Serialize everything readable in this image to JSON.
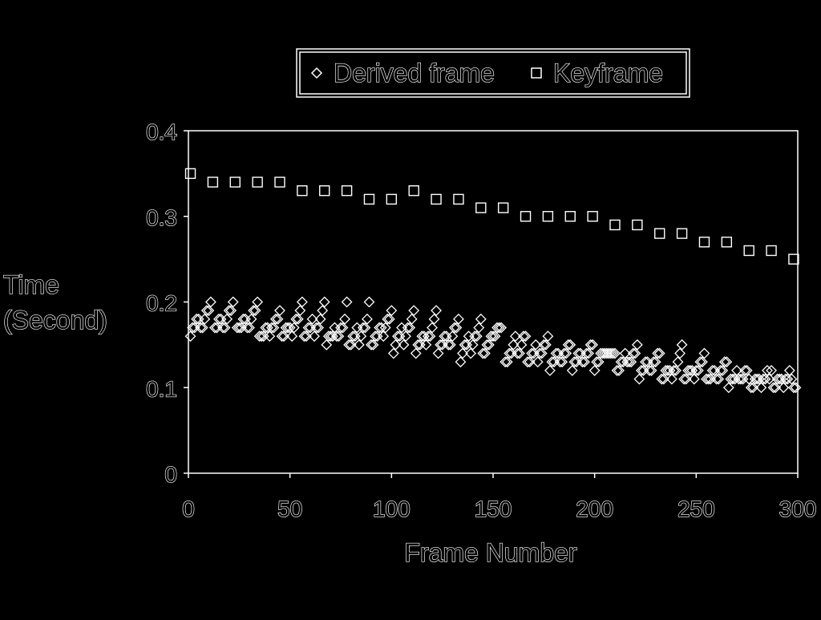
{
  "chart_data": {
    "type": "scatter",
    "title": "",
    "xlabel": "Frame Number",
    "ylabel": [
      "Time",
      "(Second)"
    ],
    "xlim": [
      0,
      300
    ],
    "ylim": [
      0,
      0.4
    ],
    "x_ticks": [
      0,
      50,
      100,
      150,
      200,
      250,
      300
    ],
    "y_ticks": [
      0,
      0.1,
      0.2,
      0.3,
      0.4
    ],
    "x_tick_labels": [
      "0",
      "50",
      "100",
      "150",
      "200",
      "250",
      "300"
    ],
    "y_tick_labels": [
      "0",
      "0.1",
      "0.2",
      "0.3",
      "0.4"
    ],
    "grid": false,
    "legend_position": "top",
    "series": [
      {
        "name": "Derived frame",
        "marker": "diamond",
        "points": [
          [
            1,
            0.16
          ],
          [
            2,
            0.17
          ],
          [
            3,
            0.17
          ],
          [
            4,
            0.18
          ],
          [
            5,
            0.18
          ],
          [
            6,
            0.17
          ],
          [
            7,
            0.17
          ],
          [
            8,
            0.18
          ],
          [
            9,
            0.19
          ],
          [
            10,
            0.19
          ],
          [
            11,
            0.2
          ],
          [
            13,
            0.17
          ],
          [
            14,
            0.17
          ],
          [
            15,
            0.18
          ],
          [
            16,
            0.18
          ],
          [
            17,
            0.17
          ],
          [
            18,
            0.17
          ],
          [
            19,
            0.18
          ],
          [
            20,
            0.19
          ],
          [
            21,
            0.19
          ],
          [
            22,
            0.2
          ],
          [
            24,
            0.17
          ],
          [
            25,
            0.17
          ],
          [
            26,
            0.17
          ],
          [
            27,
            0.18
          ],
          [
            28,
            0.18
          ],
          [
            29,
            0.17
          ],
          [
            30,
            0.17
          ],
          [
            31,
            0.18
          ],
          [
            32,
            0.19
          ],
          [
            33,
            0.19
          ],
          [
            34,
            0.2
          ],
          [
            35,
            0.16
          ],
          [
            36,
            0.16
          ],
          [
            37,
            0.16
          ],
          [
            38,
            0.17
          ],
          [
            39,
            0.17
          ],
          [
            40,
            0.16
          ],
          [
            41,
            0.17
          ],
          [
            42,
            0.17
          ],
          [
            43,
            0.18
          ],
          [
            44,
            0.18
          ],
          [
            45,
            0.19
          ],
          [
            46,
            0.16
          ],
          [
            47,
            0.16
          ],
          [
            48,
            0.17
          ],
          [
            49,
            0.17
          ],
          [
            50,
            0.17
          ],
          [
            51,
            0.16
          ],
          [
            52,
            0.17
          ],
          [
            53,
            0.18
          ],
          [
            54,
            0.18
          ],
          [
            55,
            0.19
          ],
          [
            56,
            0.2
          ],
          [
            57,
            0.16
          ],
          [
            58,
            0.16
          ],
          [
            59,
            0.17
          ],
          [
            60,
            0.17
          ],
          [
            61,
            0.18
          ],
          [
            62,
            0.16
          ],
          [
            63,
            0.17
          ],
          [
            64,
            0.17
          ],
          [
            65,
            0.18
          ],
          [
            66,
            0.19
          ],
          [
            67,
            0.2
          ],
          [
            68,
            0.15
          ],
          [
            69,
            0.16
          ],
          [
            70,
            0.16
          ],
          [
            71,
            0.16
          ],
          [
            72,
            0.17
          ],
          [
            73,
            0.16
          ],
          [
            74,
            0.16
          ],
          [
            75,
            0.17
          ],
          [
            76,
            0.17
          ],
          [
            77,
            0.18
          ],
          [
            78,
            0.2
          ],
          [
            79,
            0.15
          ],
          [
            80,
            0.15
          ],
          [
            81,
            0.16
          ],
          [
            82,
            0.16
          ],
          [
            83,
            0.17
          ],
          [
            84,
            0.15
          ],
          [
            85,
            0.16
          ],
          [
            86,
            0.17
          ],
          [
            87,
            0.17
          ],
          [
            88,
            0.18
          ],
          [
            89,
            0.2
          ],
          [
            90,
            0.15
          ],
          [
            91,
            0.15
          ],
          [
            92,
            0.16
          ],
          [
            93,
            0.16
          ],
          [
            94,
            0.17
          ],
          [
            95,
            0.17
          ],
          [
            96,
            0.16
          ],
          [
            97,
            0.17
          ],
          [
            98,
            0.18
          ],
          [
            99,
            0.18
          ],
          [
            100,
            0.19
          ],
          [
            101,
            0.14
          ],
          [
            102,
            0.15
          ],
          [
            103,
            0.16
          ],
          [
            104,
            0.16
          ],
          [
            105,
            0.17
          ],
          [
            106,
            0.15
          ],
          [
            107,
            0.16
          ],
          [
            108,
            0.17
          ],
          [
            109,
            0.17
          ],
          [
            110,
            0.18
          ],
          [
            111,
            0.19
          ],
          [
            112,
            0.14
          ],
          [
            113,
            0.15
          ],
          [
            114,
            0.15
          ],
          [
            115,
            0.16
          ],
          [
            116,
            0.16
          ],
          [
            117,
            0.15
          ],
          [
            118,
            0.16
          ],
          [
            119,
            0.16
          ],
          [
            120,
            0.17
          ],
          [
            121,
            0.18
          ],
          [
            122,
            0.19
          ],
          [
            123,
            0.14
          ],
          [
            124,
            0.15
          ],
          [
            125,
            0.15
          ],
          [
            126,
            0.16
          ],
          [
            127,
            0.16
          ],
          [
            128,
            0.15
          ],
          [
            129,
            0.15
          ],
          [
            130,
            0.16
          ],
          [
            131,
            0.17
          ],
          [
            132,
            0.17
          ],
          [
            133,
            0.18
          ],
          [
            134,
            0.13
          ],
          [
            135,
            0.14
          ],
          [
            136,
            0.15
          ],
          [
            137,
            0.15
          ],
          [
            138,
            0.16
          ],
          [
            139,
            0.14
          ],
          [
            140,
            0.15
          ],
          [
            141,
            0.16
          ],
          [
            142,
            0.16
          ],
          [
            143,
            0.17
          ],
          [
            144,
            0.18
          ],
          [
            145,
            0.14
          ],
          [
            146,
            0.14
          ],
          [
            147,
            0.15
          ],
          [
            148,
            0.15
          ],
          [
            149,
            0.16
          ],
          [
            150,
            0.16
          ],
          [
            151,
            0.16
          ],
          [
            152,
            0.17
          ],
          [
            153,
            0.17
          ],
          [
            154,
            0.17
          ],
          [
            156,
            0.13
          ],
          [
            157,
            0.13
          ],
          [
            158,
            0.14
          ],
          [
            159,
            0.14
          ],
          [
            160,
            0.15
          ],
          [
            161,
            0.16
          ],
          [
            162,
            0.14
          ],
          [
            163,
            0.14
          ],
          [
            164,
            0.15
          ],
          [
            165,
            0.16
          ],
          [
            166,
            0.16
          ],
          [
            167,
            0.13
          ],
          [
            168,
            0.13
          ],
          [
            169,
            0.14
          ],
          [
            170,
            0.14
          ],
          [
            171,
            0.15
          ],
          [
            172,
            0.13
          ],
          [
            173,
            0.14
          ],
          [
            174,
            0.14
          ],
          [
            175,
            0.15
          ],
          [
            176,
            0.15
          ],
          [
            177,
            0.16
          ],
          [
            178,
            0.12
          ],
          [
            179,
            0.13
          ],
          [
            180,
            0.13
          ],
          [
            181,
            0.14
          ],
          [
            182,
            0.14
          ],
          [
            183,
            0.13
          ],
          [
            184,
            0.13
          ],
          [
            185,
            0.14
          ],
          [
            186,
            0.14
          ],
          [
            187,
            0.15
          ],
          [
            188,
            0.15
          ],
          [
            189,
            0.12
          ],
          [
            190,
            0.13
          ],
          [
            191,
            0.13
          ],
          [
            192,
            0.14
          ],
          [
            193,
            0.14
          ],
          [
            194,
            0.13
          ],
          [
            195,
            0.13
          ],
          [
            196,
            0.14
          ],
          [
            197,
            0.14
          ],
          [
            198,
            0.15
          ],
          [
            199,
            0.15
          ],
          [
            200,
            0.12
          ],
          [
            201,
            0.13
          ],
          [
            202,
            0.13
          ],
          [
            203,
            0.14
          ],
          [
            204,
            0.14
          ],
          [
            205,
            0.14
          ],
          [
            206,
            0.14
          ],
          [
            207,
            0.14
          ],
          [
            208,
            0.14
          ],
          [
            209,
            0.14
          ],
          [
            210,
            0.14
          ],
          [
            211,
            0.12
          ],
          [
            212,
            0.12
          ],
          [
            213,
            0.13
          ],
          [
            214,
            0.13
          ],
          [
            215,
            0.14
          ],
          [
            216,
            0.13
          ],
          [
            217,
            0.13
          ],
          [
            218,
            0.13
          ],
          [
            219,
            0.14
          ],
          [
            220,
            0.14
          ],
          [
            221,
            0.15
          ],
          [
            222,
            0.11
          ],
          [
            223,
            0.12
          ],
          [
            224,
            0.12
          ],
          [
            225,
            0.13
          ],
          [
            226,
            0.13
          ],
          [
            227,
            0.12
          ],
          [
            228,
            0.12
          ],
          [
            229,
            0.13
          ],
          [
            230,
            0.13
          ],
          [
            231,
            0.14
          ],
          [
            232,
            0.14
          ],
          [
            233,
            0.11
          ],
          [
            234,
            0.11
          ],
          [
            235,
            0.12
          ],
          [
            236,
            0.12
          ],
          [
            237,
            0.12
          ],
          [
            238,
            0.11
          ],
          [
            239,
            0.12
          ],
          [
            240,
            0.12
          ],
          [
            241,
            0.13
          ],
          [
            242,
            0.14
          ],
          [
            243,
            0.15
          ],
          [
            244,
            0.11
          ],
          [
            245,
            0.11
          ],
          [
            246,
            0.12
          ],
          [
            247,
            0.12
          ],
          [
            248,
            0.12
          ],
          [
            249,
            0.11
          ],
          [
            250,
            0.12
          ],
          [
            251,
            0.12
          ],
          [
            252,
            0.13
          ],
          [
            253,
            0.13
          ],
          [
            254,
            0.14
          ],
          [
            255,
            0.11
          ],
          [
            256,
            0.11
          ],
          [
            257,
            0.11
          ],
          [
            258,
            0.12
          ],
          [
            259,
            0.12
          ],
          [
            260,
            0.11
          ],
          [
            261,
            0.11
          ],
          [
            262,
            0.12
          ],
          [
            263,
            0.12
          ],
          [
            264,
            0.13
          ],
          [
            265,
            0.13
          ],
          [
            266,
            0.1
          ],
          [
            267,
            0.11
          ],
          [
            268,
            0.11
          ],
          [
            269,
            0.11
          ],
          [
            270,
            0.12
          ],
          [
            271,
            0.11
          ],
          [
            272,
            0.11
          ],
          [
            273,
            0.11
          ],
          [
            274,
            0.12
          ],
          [
            275,
            0.12
          ],
          [
            276,
            0.11
          ],
          [
            277,
            0.1
          ],
          [
            278,
            0.1
          ],
          [
            279,
            0.11
          ],
          [
            280,
            0.11
          ],
          [
            281,
            0.11
          ],
          [
            282,
            0.1
          ],
          [
            283,
            0.11
          ],
          [
            284,
            0.11
          ],
          [
            285,
            0.12
          ],
          [
            286,
            0.11
          ],
          [
            287,
            0.12
          ],
          [
            288,
            0.1
          ],
          [
            289,
            0.1
          ],
          [
            290,
            0.11
          ],
          [
            291,
            0.11
          ],
          [
            292,
            0.11
          ],
          [
            293,
            0.1
          ],
          [
            294,
            0.11
          ],
          [
            295,
            0.11
          ],
          [
            296,
            0.12
          ],
          [
            297,
            0.11
          ],
          [
            298,
            0.1
          ],
          [
            299,
            0.1
          ]
        ]
      },
      {
        "name": "Keyframe",
        "marker": "square",
        "points": [
          [
            1,
            0.35
          ],
          [
            12,
            0.34
          ],
          [
            23,
            0.34
          ],
          [
            34,
            0.34
          ],
          [
            45,
            0.34
          ],
          [
            56,
            0.33
          ],
          [
            67,
            0.33
          ],
          [
            78,
            0.33
          ],
          [
            89,
            0.32
          ],
          [
            100,
            0.32
          ],
          [
            111,
            0.33
          ],
          [
            122,
            0.32
          ],
          [
            133,
            0.32
          ],
          [
            144,
            0.31
          ],
          [
            155,
            0.31
          ],
          [
            166,
            0.3
          ],
          [
            177,
            0.3
          ],
          [
            188,
            0.3
          ],
          [
            199,
            0.3
          ],
          [
            210,
            0.29
          ],
          [
            221,
            0.29
          ],
          [
            232,
            0.28
          ],
          [
            243,
            0.28
          ],
          [
            254,
            0.27
          ],
          [
            265,
            0.27
          ],
          [
            276,
            0.26
          ],
          [
            287,
            0.26
          ],
          [
            298,
            0.25
          ]
        ]
      }
    ]
  }
}
